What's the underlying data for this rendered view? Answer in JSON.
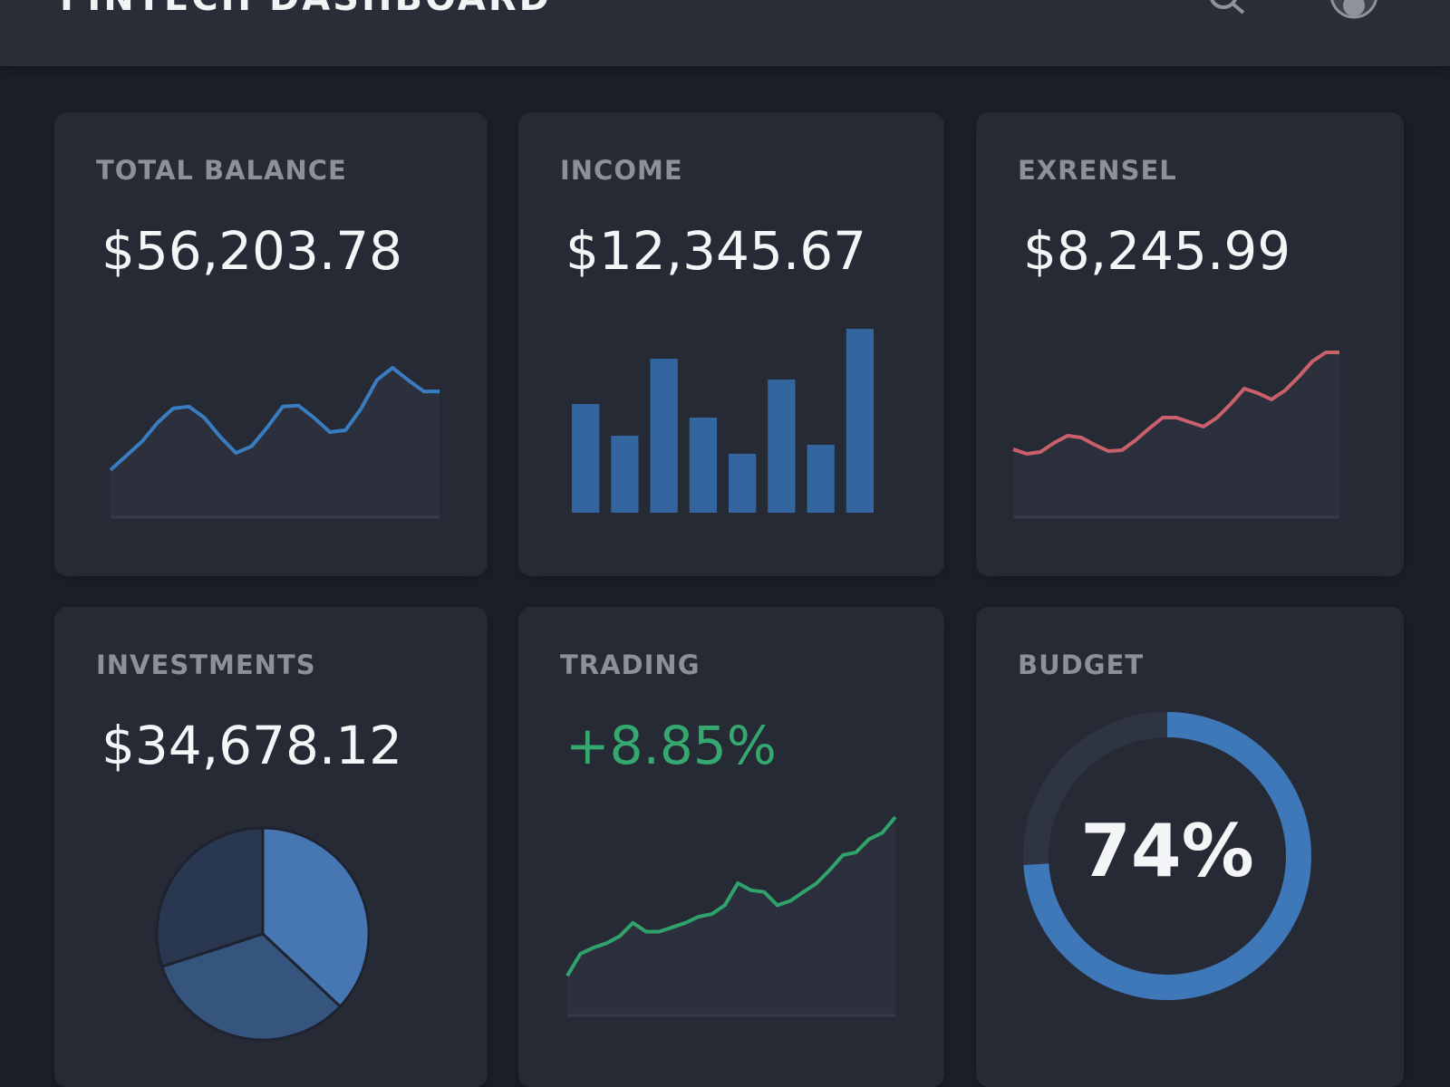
{
  "header": {
    "title": "FINTECH DASHBOARD"
  },
  "cards": [
    {
      "label": "TOTAL BALANCE",
      "value": "$56,203.78",
      "chart_data": {
        "type": "line",
        "color": "#3a7cc0",
        "values": [
          50,
          65,
          80,
          100,
          115,
          117,
          105,
          85,
          68,
          75,
          95,
          117,
          118,
          105,
          90,
          92,
          115,
          145,
          158,
          145,
          133,
          133
        ]
      }
    },
    {
      "label": "INCOME",
      "value": "$12,345.67",
      "chart_data": {
        "type": "bar",
        "color": "#33659e",
        "values": [
          120,
          85,
          170,
          105,
          65,
          147,
          75,
          203
        ]
      }
    },
    {
      "label": "EXRENSEL",
      "value": "$8,245.99",
      "chart_data": {
        "type": "line",
        "color": "#c9606a",
        "values": [
          75,
          70,
          72,
          82,
          90,
          88,
          80,
          73,
          74,
          85,
          98,
          110,
          110,
          105,
          100,
          110,
          125,
          142,
          137,
          130,
          140,
          155,
          172,
          182,
          182
        ]
      }
    },
    {
      "label": "INVESTMENTS",
      "value": "$34,678.12",
      "chart_data": {
        "type": "pie",
        "colors": [
          "#4677b2",
          "#35557f",
          "#2a3750"
        ],
        "values": [
          37,
          33,
          30
        ]
      }
    },
    {
      "label": "TRADING",
      "value": "+8.85%",
      "chart_data": {
        "type": "line",
        "color": "#2fa36b",
        "values": [
          45,
          70,
          77,
          82,
          90,
          105,
          95,
          95,
          100,
          105,
          112,
          115,
          125,
          150,
          142,
          140,
          125,
          130,
          140,
          150,
          165,
          182,
          185,
          200,
          207,
          225
        ]
      }
    },
    {
      "label": "BUDGET",
      "chart_data": {
        "type": "donut",
        "color": "#3f78b8",
        "values": [
          74
        ],
        "value_labels": [
          "74%"
        ]
      }
    }
  ]
}
